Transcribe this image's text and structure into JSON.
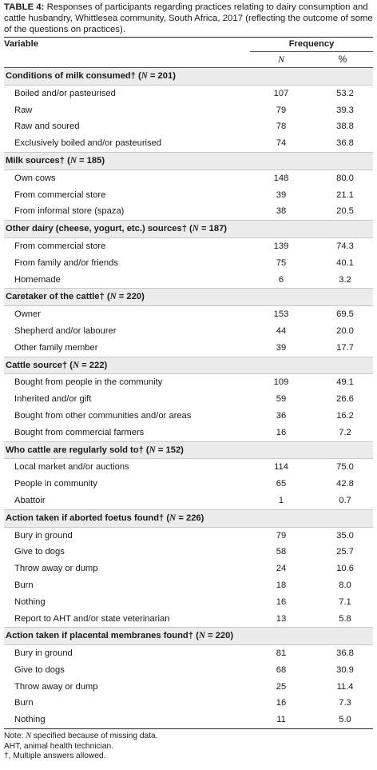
{
  "caption": {
    "label": "TABLE 4:",
    "text": " Responses of participants regarding practices relating to dairy consumption and cattle husbandry, Whittlesea community, South Africa, 2017 (reflecting the outcome of some of the questions on practices)."
  },
  "header": {
    "variable": "Variable",
    "frequency": "Frequency",
    "n": "N",
    "pct": "%"
  },
  "sections": [
    {
      "title": "Conditions of milk consumed†",
      "n_text": "N",
      "n_value": " = 201)",
      "rows": [
        {
          "label": "Boiled and/or pasteurised",
          "n": "107",
          "pct": "53.2"
        },
        {
          "label": "Raw",
          "n": "79",
          "pct": "39.3"
        },
        {
          "label": "Raw and soured",
          "n": "78",
          "pct": "38.8"
        },
        {
          "label": "Exclusively boiled and/or pasteurised",
          "n": "74",
          "pct": "36.8"
        }
      ]
    },
    {
      "title": "Milk sources†",
      "n_text": "N",
      "n_value": " = 185)",
      "rows": [
        {
          "label": "Own cows",
          "n": "148",
          "pct": "80.0"
        },
        {
          "label": "From commercial store",
          "n": "39",
          "pct": "21.1"
        },
        {
          "label": "From informal store (spaza)",
          "n": "38",
          "pct": "20.5"
        }
      ]
    },
    {
      "title": "Other dairy (cheese, yogurt, etc.) sources†",
      "n_text": "N",
      "n_value": " = 187)",
      "rows": [
        {
          "label": "From commercial store",
          "n": "139",
          "pct": "74.3"
        },
        {
          "label": "From family and/or friends",
          "n": "75",
          "pct": "40.1"
        },
        {
          "label": "Homemade",
          "n": "6",
          "pct": "3.2"
        }
      ]
    },
    {
      "title": "Caretaker of the cattle†",
      "n_text": "N",
      "n_value": " = 220)",
      "rows": [
        {
          "label": "Owner",
          "n": "153",
          "pct": "69.5"
        },
        {
          "label": "Shepherd and/or labourer",
          "n": "44",
          "pct": "20.0"
        },
        {
          "label": "Other family member",
          "n": "39",
          "pct": "17.7"
        }
      ]
    },
    {
      "title": "Cattle source†",
      "n_text": "N",
      "n_value": " = 222)",
      "rows": [
        {
          "label": "Bought from people in the community",
          "n": "109",
          "pct": "49.1"
        },
        {
          "label": "Inherited and/or gift",
          "n": "59",
          "pct": "26.6"
        },
        {
          "label": "Bought from other communities and/or areas",
          "n": "36",
          "pct": "16.2"
        },
        {
          "label": "Bought from commercial farmers",
          "n": "16",
          "pct": "7.2"
        }
      ]
    },
    {
      "title": "Who cattle are regularly sold to†",
      "n_text": "N",
      "n_value": " = 152)",
      "rows": [
        {
          "label": "Local market and/or auctions",
          "n": "114",
          "pct": "75.0"
        },
        {
          "label": "People in community",
          "n": "65",
          "pct": "42.8"
        },
        {
          "label": "Abattoir",
          "n": "1",
          "pct": "0.7"
        }
      ]
    },
    {
      "title": "Action taken if aborted foetus found†",
      "n_text": "N",
      "n_value": " = 226)",
      "rows": [
        {
          "label": "Bury in ground",
          "n": "79",
          "pct": "35.0"
        },
        {
          "label": "Give to dogs",
          "n": "58",
          "pct": "25.7"
        },
        {
          "label": "Throw away or dump",
          "n": "24",
          "pct": "10.6"
        },
        {
          "label": "Burn",
          "n": "18",
          "pct": "8.0"
        },
        {
          "label": "Nothing",
          "n": "16",
          "pct": "7.1"
        },
        {
          "label": "Report to AHT and/or state veterinarian",
          "n": "13",
          "pct": "5.8"
        }
      ]
    },
    {
      "title": "Action taken if placental membranes found†",
      "n_text": "N",
      "n_value": " = 220)",
      "rows": [
        {
          "label": "Bury in ground",
          "n": "81",
          "pct": "36.8"
        },
        {
          "label": "Give to dogs",
          "n": "68",
          "pct": "30.9"
        },
        {
          "label": "Throw away or dump",
          "n": "25",
          "pct": "11.4"
        },
        {
          "label": "Burn",
          "n": "16",
          "pct": "7.3"
        },
        {
          "label": "Nothing",
          "n": "11",
          "pct": "5.0"
        }
      ]
    }
  ],
  "notes": {
    "line1_prefix": "Note: ",
    "line1_italic": "N",
    "line1_rest": " specified because of missing data.",
    "line2": "AHT, animal health technician.",
    "line3": "†, Multiple answers allowed."
  }
}
